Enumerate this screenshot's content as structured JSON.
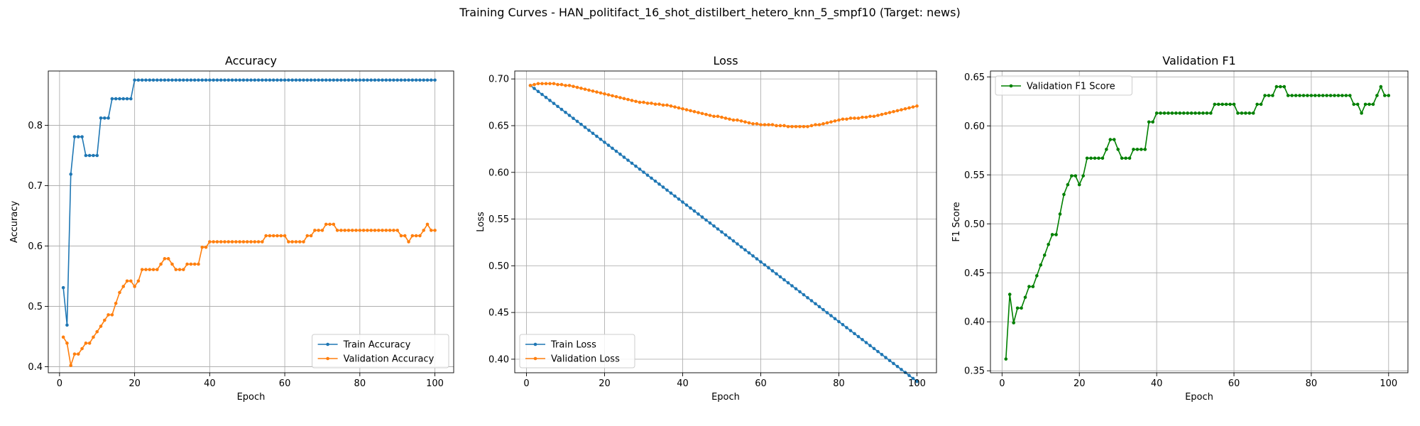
{
  "figure": {
    "suptitle": "Training Curves - HAN_politifact_16_shot_distilbert_hetero_knn_5_smpf10 (Target: news)"
  },
  "chart_data": [
    {
      "type": "line",
      "title": "Accuracy",
      "xlabel": "Epoch",
      "ylabel": "Accuracy",
      "xlim": [
        -3,
        105
      ],
      "ylim": [
        0.39,
        0.89
      ],
      "xticks": [
        0,
        20,
        40,
        60,
        80,
        100
      ],
      "yticks": [
        0.4,
        0.5,
        0.6,
        0.7,
        0.8
      ],
      "ytick_labels": [
        "0.4",
        "0.5",
        "0.6",
        "0.7",
        "0.8"
      ],
      "grid": true,
      "legend": "lower right",
      "series": [
        {
          "name": "Train Accuracy",
          "color": "#1f77b4",
          "values": [
            0.531,
            0.469,
            0.719,
            0.781,
            0.781,
            0.781,
            0.75,
            0.75,
            0.75,
            0.75,
            0.812,
            0.812,
            0.812,
            0.844,
            0.844,
            0.844,
            0.844,
            0.844,
            0.844,
            0.875,
            0.875,
            0.875,
            0.875,
            0.875,
            0.875,
            0.875,
            0.875,
            0.875,
            0.875,
            0.875,
            0.875,
            0.875,
            0.875,
            0.875,
            0.875,
            0.875,
            0.875,
            0.875,
            0.875,
            0.875,
            0.875,
            0.875,
            0.875,
            0.875,
            0.875,
            0.875,
            0.875,
            0.875,
            0.875,
            0.875,
            0.875,
            0.875,
            0.875,
            0.875,
            0.875,
            0.875,
            0.875,
            0.875,
            0.875,
            0.875,
            0.875,
            0.875,
            0.875,
            0.875,
            0.875,
            0.875,
            0.875,
            0.875,
            0.875,
            0.875,
            0.875,
            0.875,
            0.875,
            0.875,
            0.875,
            0.875,
            0.875,
            0.875,
            0.875,
            0.875,
            0.875,
            0.875,
            0.875,
            0.875,
            0.875,
            0.875,
            0.875,
            0.875,
            0.875,
            0.875,
            0.875,
            0.875,
            0.875,
            0.875,
            0.875,
            0.875,
            0.875,
            0.875,
            0.875,
            0.875
          ]
        },
        {
          "name": "Validation Accuracy",
          "color": "#ff7f0e",
          "values": [
            0.449,
            0.439,
            0.402,
            0.421,
            0.421,
            0.43,
            0.439,
            0.439,
            0.449,
            0.458,
            0.467,
            0.477,
            0.486,
            0.486,
            0.505,
            0.523,
            0.533,
            0.542,
            0.542,
            0.533,
            0.542,
            0.561,
            0.561,
            0.561,
            0.561,
            0.561,
            0.57,
            0.579,
            0.579,
            0.57,
            0.561,
            0.561,
            0.561,
            0.57,
            0.57,
            0.57,
            0.57,
            0.598,
            0.598,
            0.607,
            0.607,
            0.607,
            0.607,
            0.607,
            0.607,
            0.607,
            0.607,
            0.607,
            0.607,
            0.607,
            0.607,
            0.607,
            0.607,
            0.607,
            0.617,
            0.617,
            0.617,
            0.617,
            0.617,
            0.617,
            0.607,
            0.607,
            0.607,
            0.607,
            0.607,
            0.617,
            0.617,
            0.626,
            0.626,
            0.626,
            0.636,
            0.636,
            0.636,
            0.626,
            0.626,
            0.626,
            0.626,
            0.626,
            0.626,
            0.626,
            0.626,
            0.626,
            0.626,
            0.626,
            0.626,
            0.626,
            0.626,
            0.626,
            0.626,
            0.626,
            0.617,
            0.617,
            0.607,
            0.617,
            0.617,
            0.617,
            0.626,
            0.636,
            0.626,
            0.626
          ]
        }
      ]
    },
    {
      "type": "line",
      "title": "Loss",
      "xlabel": "Epoch",
      "ylabel": "Loss",
      "xlim": [
        -3,
        105
      ],
      "ylim": [
        0.3855,
        0.7085
      ],
      "xticks": [
        0,
        20,
        40,
        60,
        80,
        100
      ],
      "yticks": [
        0.4,
        0.45,
        0.5,
        0.55,
        0.6,
        0.65,
        0.7
      ],
      "ytick_labels": [
        "0.40",
        "0.45",
        "0.50",
        "0.55",
        "0.60",
        "0.65",
        "0.70"
      ],
      "grid": true,
      "legend": "lower left",
      "series": [
        {
          "name": "Train Loss",
          "color": "#1f77b4",
          "values": [
            0.693,
            0.6898,
            0.6866,
            0.6834,
            0.6802,
            0.677,
            0.6738,
            0.6706,
            0.6674,
            0.6642,
            0.661,
            0.6578,
            0.6546,
            0.6514,
            0.6482,
            0.645,
            0.6418,
            0.6386,
            0.6354,
            0.6322,
            0.629,
            0.6258,
            0.6226,
            0.6194,
            0.6162,
            0.613,
            0.6098,
            0.6066,
            0.6034,
            0.6002,
            0.597,
            0.5938,
            0.5906,
            0.5874,
            0.5842,
            0.581,
            0.5778,
            0.5746,
            0.5714,
            0.5682,
            0.565,
            0.5618,
            0.5586,
            0.5554,
            0.5522,
            0.549,
            0.5458,
            0.5426,
            0.5394,
            0.5362,
            0.533,
            0.5298,
            0.5266,
            0.5234,
            0.5202,
            0.517,
            0.5138,
            0.5106,
            0.5074,
            0.5042,
            0.501,
            0.4978,
            0.4946,
            0.4914,
            0.4882,
            0.485,
            0.4818,
            0.4786,
            0.4754,
            0.4722,
            0.469,
            0.4658,
            0.4626,
            0.4594,
            0.4562,
            0.453,
            0.4498,
            0.4466,
            0.4434,
            0.4402,
            0.437,
            0.4338,
            0.4306,
            0.4274,
            0.4242,
            0.421,
            0.4178,
            0.4146,
            0.4114,
            0.4082,
            0.405,
            0.4018,
            0.3986,
            0.3954,
            0.3922,
            0.389,
            0.3858,
            0.3826,
            0.3794,
            0.3762
          ]
        },
        {
          "name": "Validation Loss",
          "color": "#ff7f0e",
          "values": [
            0.693,
            0.694,
            0.695,
            0.695,
            0.695,
            0.695,
            0.695,
            0.694,
            0.694,
            0.693,
            0.693,
            0.692,
            0.691,
            0.69,
            0.689,
            0.688,
            0.687,
            0.686,
            0.685,
            0.684,
            0.683,
            0.682,
            0.681,
            0.68,
            0.679,
            0.678,
            0.677,
            0.676,
            0.675,
            0.675,
            0.674,
            0.674,
            0.673,
            0.673,
            0.672,
            0.672,
            0.671,
            0.67,
            0.669,
            0.668,
            0.667,
            0.666,
            0.665,
            0.664,
            0.663,
            0.662,
            0.661,
            0.66,
            0.66,
            0.659,
            0.658,
            0.657,
            0.656,
            0.656,
            0.655,
            0.654,
            0.653,
            0.652,
            0.652,
            0.651,
            0.651,
            0.651,
            0.651,
            0.65,
            0.65,
            0.65,
            0.649,
            0.649,
            0.649,
            0.649,
            0.649,
            0.649,
            0.65,
            0.651,
            0.651,
            0.652,
            0.653,
            0.654,
            0.655,
            0.656,
            0.657,
            0.657,
            0.658,
            0.658,
            0.658,
            0.659,
            0.659,
            0.66,
            0.66,
            0.661,
            0.662,
            0.663,
            0.664,
            0.665,
            0.666,
            0.667,
            0.668,
            0.669,
            0.67,
            0.671
          ]
        }
      ]
    },
    {
      "type": "line",
      "title": "Validation F1",
      "xlabel": "Epoch",
      "ylabel": "F1 Score",
      "xlim": [
        -3,
        105
      ],
      "ylim": [
        0.348,
        0.656
      ],
      "xticks": [
        0,
        20,
        40,
        60,
        80,
        100
      ],
      "yticks": [
        0.35,
        0.4,
        0.45,
        0.5,
        0.55,
        0.6,
        0.65
      ],
      "ytick_labels": [
        "0.35",
        "0.40",
        "0.45",
        "0.50",
        "0.55",
        "0.60",
        "0.65"
      ],
      "grid": true,
      "legend": "upper left",
      "series": [
        {
          "name": "Validation F1 Score",
          "color": "#008000",
          "values": [
            0.362,
            0.428,
            0.399,
            0.414,
            0.414,
            0.425,
            0.436,
            0.436,
            0.447,
            0.458,
            0.468,
            0.479,
            0.489,
            0.489,
            0.51,
            0.53,
            0.54,
            0.549,
            0.549,
            0.54,
            0.549,
            0.567,
            0.567,
            0.567,
            0.567,
            0.567,
            0.576,
            0.586,
            0.586,
            0.576,
            0.567,
            0.567,
            0.567,
            0.576,
            0.576,
            0.576,
            0.576,
            0.604,
            0.604,
            0.613,
            0.613,
            0.613,
            0.613,
            0.613,
            0.613,
            0.613,
            0.613,
            0.613,
            0.613,
            0.613,
            0.613,
            0.613,
            0.613,
            0.613,
            0.622,
            0.622,
            0.622,
            0.622,
            0.622,
            0.622,
            0.613,
            0.613,
            0.613,
            0.613,
            0.613,
            0.622,
            0.622,
            0.631,
            0.631,
            0.631,
            0.64,
            0.64,
            0.64,
            0.631,
            0.631,
            0.631,
            0.631,
            0.631,
            0.631,
            0.631,
            0.631,
            0.631,
            0.631,
            0.631,
            0.631,
            0.631,
            0.631,
            0.631,
            0.631,
            0.631,
            0.622,
            0.622,
            0.613,
            0.622,
            0.622,
            0.622,
            0.631,
            0.64,
            0.631,
            0.631
          ]
        }
      ]
    }
  ]
}
